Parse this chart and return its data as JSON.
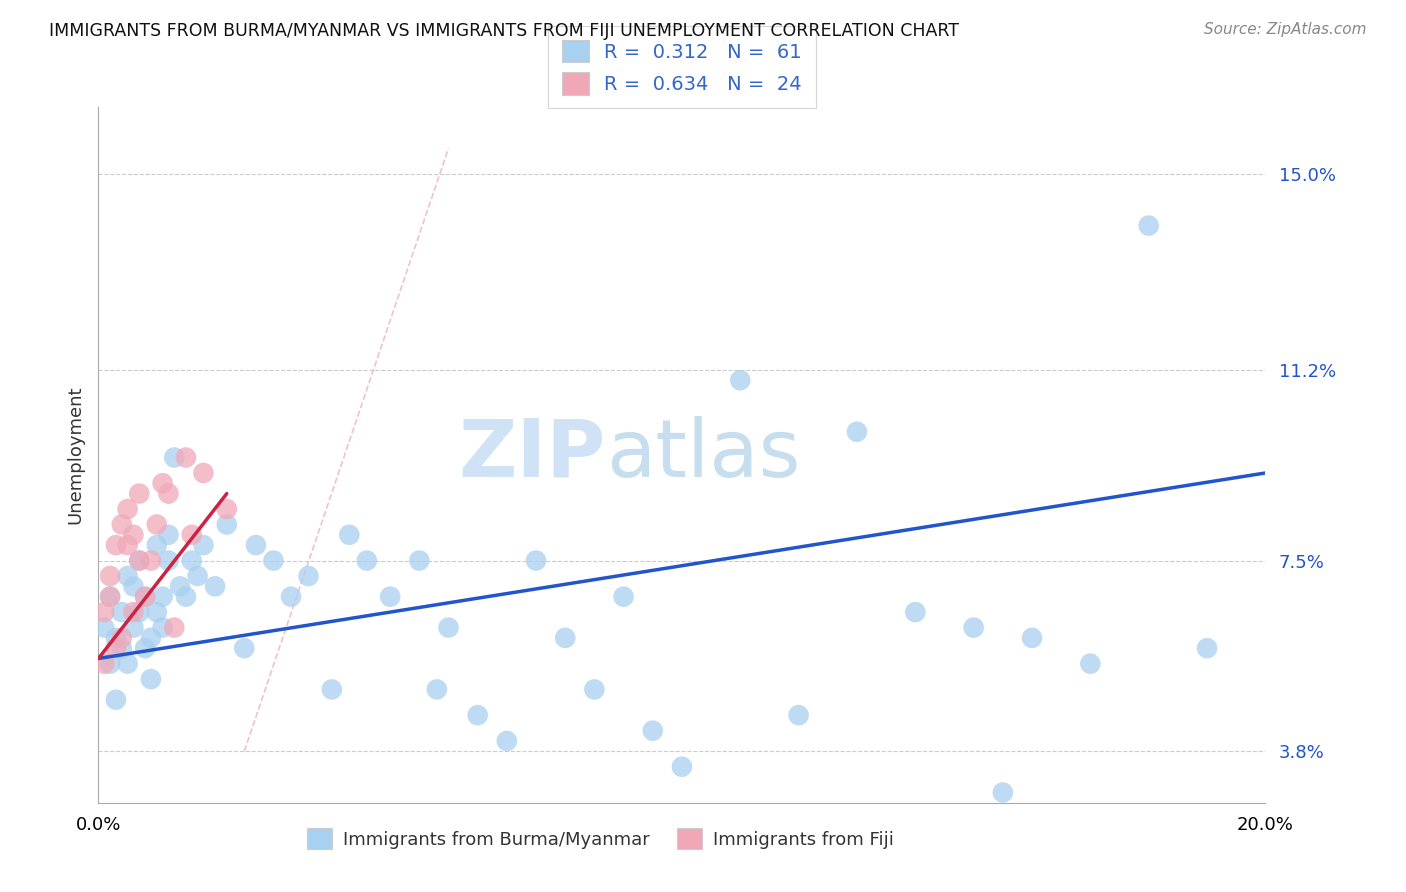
{
  "title": "IMMIGRANTS FROM BURMA/MYANMAR VS IMMIGRANTS FROM FIJI UNEMPLOYMENT CORRELATION CHART",
  "source": "Source: ZipAtlas.com",
  "ylabel": "Unemployment",
  "xlim": [
    0.0,
    0.2
  ],
  "ylim": [
    0.028,
    0.163
  ],
  "yticks": [
    0.038,
    0.075,
    0.112,
    0.15
  ],
  "ytick_labels": [
    "3.8%",
    "7.5%",
    "11.2%",
    "15.0%"
  ],
  "legend_entry1": "R =  0.312   N =  61",
  "legend_entry2": "R =  0.634   N =  24",
  "color_blue": "#a8d0f0",
  "color_pink": "#f0a8b8",
  "color_blue_line": "#2255cc",
  "color_pink_line": "#cc2244",
  "background": "#ffffff",
  "legend_labels_bottom": [
    "Immigrants from Burma/Myanmar",
    "Immigrants from Fiji"
  ],
  "burma_x": [
    0.001,
    0.002,
    0.002,
    0.003,
    0.003,
    0.004,
    0.004,
    0.005,
    0.005,
    0.006,
    0.006,
    0.007,
    0.007,
    0.008,
    0.008,
    0.009,
    0.009,
    0.01,
    0.01,
    0.011,
    0.011,
    0.012,
    0.012,
    0.013,
    0.014,
    0.015,
    0.016,
    0.017,
    0.018,
    0.02,
    0.022,
    0.025,
    0.027,
    0.03,
    0.033,
    0.036,
    0.04,
    0.043,
    0.046,
    0.05,
    0.055,
    0.058,
    0.06,
    0.065,
    0.07,
    0.075,
    0.08,
    0.085,
    0.09,
    0.095,
    0.1,
    0.11,
    0.12,
    0.13,
    0.14,
    0.15,
    0.155,
    0.16,
    0.17,
    0.18,
    0.19
  ],
  "burma_y": [
    0.062,
    0.055,
    0.068,
    0.06,
    0.048,
    0.058,
    0.065,
    0.072,
    0.055,
    0.062,
    0.07,
    0.065,
    0.075,
    0.058,
    0.068,
    0.052,
    0.06,
    0.078,
    0.065,
    0.068,
    0.062,
    0.075,
    0.08,
    0.095,
    0.07,
    0.068,
    0.075,
    0.072,
    0.078,
    0.07,
    0.082,
    0.058,
    0.078,
    0.075,
    0.068,
    0.072,
    0.05,
    0.08,
    0.075,
    0.068,
    0.075,
    0.05,
    0.062,
    0.045,
    0.04,
    0.075,
    0.06,
    0.05,
    0.068,
    0.042,
    0.035,
    0.11,
    0.045,
    0.1,
    0.065,
    0.062,
    0.03,
    0.06,
    0.055,
    0.14,
    0.058
  ],
  "fiji_x": [
    0.001,
    0.001,
    0.002,
    0.002,
    0.003,
    0.003,
    0.004,
    0.004,
    0.005,
    0.005,
    0.006,
    0.006,
    0.007,
    0.007,
    0.008,
    0.009,
    0.01,
    0.011,
    0.012,
    0.013,
    0.015,
    0.016,
    0.018,
    0.022
  ],
  "fiji_y": [
    0.065,
    0.055,
    0.068,
    0.072,
    0.058,
    0.078,
    0.082,
    0.06,
    0.078,
    0.085,
    0.065,
    0.08,
    0.075,
    0.088,
    0.068,
    0.075,
    0.082,
    0.09,
    0.088,
    0.062,
    0.095,
    0.08,
    0.092,
    0.085
  ],
  "blue_line_x": [
    0.0,
    0.2
  ],
  "blue_line_y": [
    0.056,
    0.092
  ],
  "pink_line_x": [
    0.0,
    0.022
  ],
  "pink_line_y": [
    0.056,
    0.088
  ],
  "dash_line_x": [
    0.025,
    0.06
  ],
  "dash_line_y": [
    0.038,
    0.155
  ]
}
